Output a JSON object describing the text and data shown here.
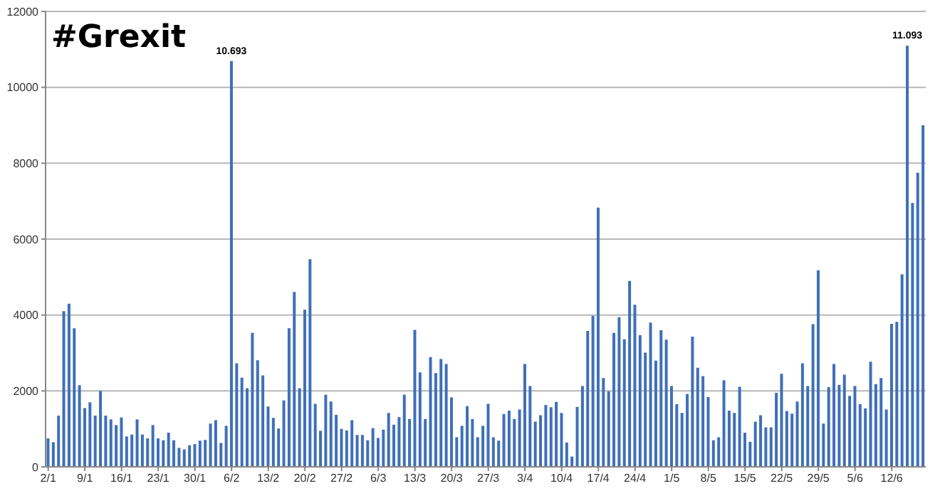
{
  "chart_data": {
    "type": "bar",
    "title": "#Grexit",
    "categories": [
      "2/1",
      null,
      null,
      null,
      null,
      null,
      null,
      "9/1",
      null,
      null,
      null,
      null,
      null,
      null,
      "16/1",
      null,
      null,
      null,
      null,
      null,
      null,
      "23/1",
      null,
      null,
      null,
      null,
      null,
      null,
      "30/1",
      null,
      null,
      null,
      null,
      null,
      null,
      "6/2",
      null,
      null,
      null,
      null,
      null,
      null,
      "13/2",
      null,
      null,
      null,
      null,
      null,
      null,
      "20/2",
      null,
      null,
      null,
      null,
      null,
      null,
      "27/2",
      null,
      null,
      null,
      null,
      null,
      null,
      "6/3",
      null,
      null,
      null,
      null,
      null,
      null,
      "13/3",
      null,
      null,
      null,
      null,
      null,
      null,
      "20/3",
      null,
      null,
      null,
      null,
      null,
      null,
      "27/3",
      null,
      null,
      null,
      null,
      null,
      null,
      "3/4",
      null,
      null,
      null,
      null,
      null,
      null,
      "10/4",
      null,
      null,
      null,
      null,
      null,
      null,
      "17/4",
      null,
      null,
      null,
      null,
      null,
      null,
      "24/4",
      null,
      null,
      null,
      null,
      null,
      null,
      "1/5",
      null,
      null,
      null,
      null,
      null,
      null,
      "8/5",
      null,
      null,
      null,
      null,
      null,
      null,
      "15/5",
      null,
      null,
      null,
      null,
      null,
      null,
      "22/5",
      null,
      null,
      null,
      null,
      null,
      null,
      "29/5",
      null,
      null,
      null,
      null,
      null,
      null,
      "5/6",
      null,
      null,
      null,
      null,
      null,
      null,
      "12/6",
      null,
      null,
      null,
      null,
      null,
      null
    ],
    "values": [
      750,
      650,
      1350,
      4100,
      4300,
      3650,
      2150,
      1550,
      1700,
      1350,
      2000,
      1350,
      1250,
      1100,
      1300,
      800,
      850,
      1250,
      850,
      750,
      1100,
      750,
      700,
      900,
      700,
      500,
      460,
      570,
      600,
      690,
      710,
      1140,
      1230,
      630,
      1080,
      10693,
      2730,
      2350,
      2070,
      3530,
      2810,
      2410,
      1590,
      1290,
      1010,
      1750,
      3650,
      4610,
      2070,
      4140,
      5470,
      1660,
      950,
      1900,
      1720,
      1370,
      1000,
      960,
      1230,
      840,
      840,
      700,
      1020,
      760,
      980,
      1420,
      1110,
      1310,
      1900,
      1260,
      3610,
      2490,
      1260,
      2890,
      2470,
      2840,
      2710,
      1830,
      780,
      1080,
      1600,
      1260,
      780,
      1080,
      1660,
      780,
      690,
      1390,
      1480,
      1260,
      1510,
      2710,
      2130,
      1190,
      1360,
      1630,
      1570,
      1710,
      1420,
      640,
      270,
      1580,
      2130,
      3580,
      3980,
      6830,
      2340,
      1990,
      3530,
      3940,
      3360,
      4900,
      4270,
      3470,
      3010,
      3800,
      2800,
      3600,
      3350,
      2130,
      1650,
      1420,
      1920,
      3430,
      2610,
      2390,
      1840,
      700,
      780,
      2280,
      1480,
      1420,
      2110,
      900,
      660,
      1190,
      1360,
      1040,
      1040,
      1950,
      2450,
      1470,
      1400,
      1720,
      2730,
      2130,
      3760,
      5180,
      1140,
      2100,
      2710,
      2160,
      2430,
      1870,
      2130,
      1650,
      1540,
      2770,
      2180,
      2340,
      1510,
      3770,
      3820,
      5070,
      11093,
      6950,
      7750,
      9000
    ],
    "value_labels": [
      null,
      null,
      null,
      null,
      null,
      null,
      null,
      null,
      null,
      null,
      null,
      null,
      null,
      null,
      null,
      null,
      null,
      null,
      null,
      null,
      null,
      null,
      null,
      null,
      null,
      null,
      null,
      null,
      null,
      null,
      null,
      null,
      null,
      null,
      null,
      "10.693",
      null,
      null,
      null,
      null,
      null,
      null,
      null,
      null,
      null,
      null,
      null,
      null,
      null,
      null,
      null,
      null,
      null,
      null,
      null,
      null,
      null,
      null,
      null,
      null,
      null,
      null,
      null,
      null,
      null,
      null,
      null,
      null,
      null,
      null,
      null,
      null,
      null,
      null,
      null,
      null,
      null,
      null,
      null,
      null,
      null,
      null,
      null,
      null,
      null,
      null,
      null,
      null,
      null,
      null,
      null,
      null,
      null,
      null,
      null,
      null,
      null,
      null,
      null,
      null,
      null,
      null,
      null,
      null,
      null,
      null,
      null,
      null,
      null,
      null,
      null,
      null,
      null,
      null,
      null,
      null,
      null,
      null,
      null,
      null,
      null,
      null,
      null,
      null,
      null,
      null,
      null,
      null,
      null,
      null,
      null,
      null,
      null,
      null,
      null,
      null,
      null,
      null,
      null,
      null,
      null,
      null,
      null,
      null,
      null,
      null,
      null,
      null,
      null,
      null,
      null,
      null,
      null,
      null,
      null,
      null,
      null,
      null,
      null,
      null,
      null,
      null,
      null,
      null,
      "11.093",
      null,
      null,
      null
    ],
    "color": "#3f6fb8",
    "ylim": [
      0,
      12000
    ],
    "yticks": [
      0,
      2000,
      4000,
      6000,
      8000,
      10000,
      12000
    ],
    "grid": "y"
  }
}
